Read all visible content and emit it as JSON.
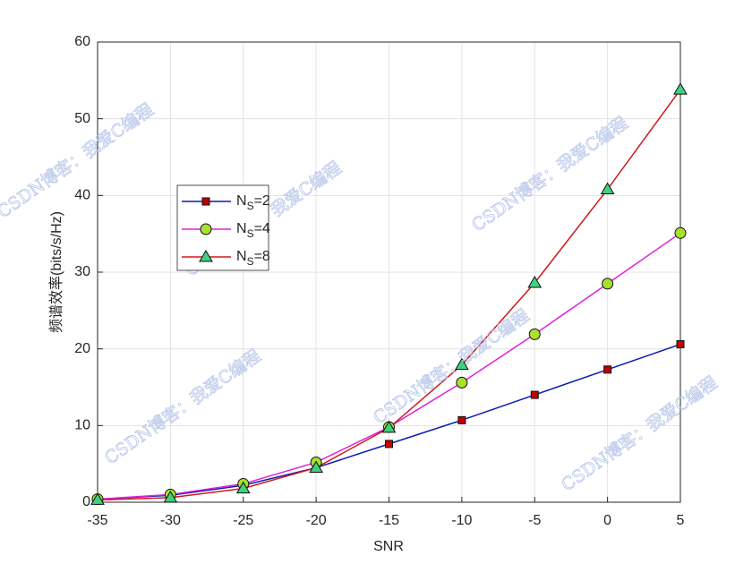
{
  "chart_data": {
    "type": "line",
    "x_label": "SNR",
    "y_label": "频谱效率(bits/s/Hz)",
    "watermark": "CSDN博客：我爱C编程",
    "x": [
      -35,
      -30,
      -25,
      -20,
      -15,
      -10,
      -5,
      0,
      5
    ],
    "xlim": [
      -35,
      5
    ],
    "xticks": [
      -35,
      -30,
      -25,
      -20,
      -15,
      -10,
      -5,
      0,
      5
    ],
    "ylim": [
      0,
      60
    ],
    "yticks": [
      0,
      10,
      20,
      30,
      40,
      50,
      60
    ],
    "grid": true,
    "legend": "upper left",
    "series": [
      {
        "name": "NS=2",
        "color": "#0a1ab4",
        "marker": "square",
        "marker_color": "#c00000",
        "values": [
          0.4,
          0.9,
          2.2,
          4.5,
          7.6,
          10.7,
          14.0,
          17.3,
          20.6
        ]
      },
      {
        "name": "NS=4",
        "color": "#e020e0",
        "marker": "circle",
        "marker_color": "#a8e030",
        "values": [
          0.4,
          1.0,
          2.4,
          5.2,
          9.8,
          15.6,
          21.9,
          28.5,
          35.1
        ]
      },
      {
        "name": "NS=8",
        "color": "#d01818",
        "marker": "triangle",
        "marker_color": "#40d080",
        "values": [
          0.3,
          0.6,
          1.8,
          4.5,
          9.7,
          17.9,
          28.6,
          40.8,
          53.8
        ]
      }
    ]
  }
}
